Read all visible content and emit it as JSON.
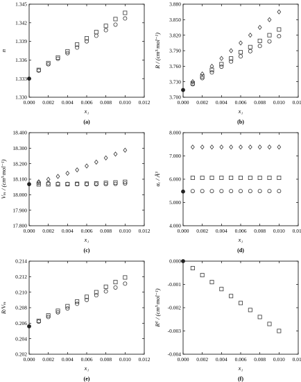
{
  "chart_data": [
    {
      "type": "scatter",
      "panel_label": "(a)",
      "xlabel": "x₁",
      "ylabel": "n",
      "xlim": [
        0.0,
        0.012
      ],
      "ylim": [
        1.33,
        1.345
      ],
      "xticks": [
        "0.000",
        "0.002",
        "0.004",
        "0.006",
        "0.008",
        "0.010",
        "0.012"
      ],
      "yticks": [
        "1.330",
        "1.333",
        "1.336",
        "1.339",
        "1.342",
        "1.345"
      ],
      "series": [
        {
          "marker": "filled-circle",
          "x": [
            0.0
          ],
          "y": [
            1.333
          ]
        },
        {
          "marker": "square",
          "x": [
            0.001,
            0.002,
            0.003,
            0.004,
            0.005,
            0.006,
            0.007,
            0.008,
            0.009,
            0.01
          ],
          "y": [
            1.3344,
            1.3355,
            1.3364,
            1.3374,
            1.3385,
            1.3395,
            1.3405,
            1.3415,
            1.3426,
            1.3436
          ]
        },
        {
          "marker": "circle",
          "x": [
            0.001,
            0.002,
            0.003,
            0.004,
            0.005,
            0.006,
            0.007,
            0.008,
            0.009,
            0.01
          ],
          "y": [
            1.3343,
            1.3353,
            1.3362,
            1.3371,
            1.338,
            1.339,
            1.3399,
            1.3408,
            1.3417,
            1.3427
          ]
        }
      ]
    },
    {
      "type": "scatter",
      "panel_label": "(b)",
      "xlabel": "x₁",
      "ylabel": "R / (cm³·mol⁻¹)",
      "xlim": [
        0.0,
        0.012
      ],
      "ylim": [
        3.7,
        3.88
      ],
      "xticks": [
        "0.000",
        "0.002",
        "0.004",
        "0.006",
        "0.008",
        "0.010",
        "0.012"
      ],
      "yticks": [
        "3.700",
        "3.730",
        "3.760",
        "3.790",
        "3.820",
        "3.850",
        "3.880"
      ],
      "series": [
        {
          "marker": "filled-circle",
          "x": [
            0.0
          ],
          "y": [
            3.714
          ]
        },
        {
          "marker": "diamond",
          "x": [
            0.001,
            0.002,
            0.003,
            0.004,
            0.005,
            0.006,
            0.007,
            0.008,
            0.009,
            0.01
          ],
          "y": [
            3.73,
            3.745,
            3.76,
            3.775,
            3.79,
            3.805,
            3.82,
            3.835,
            3.85,
            3.865
          ]
        },
        {
          "marker": "square",
          "x": [
            0.001,
            0.002,
            0.003,
            0.004,
            0.005,
            0.006,
            0.007,
            0.008,
            0.009,
            0.01
          ],
          "y": [
            3.727,
            3.74,
            3.753,
            3.764,
            3.775,
            3.787,
            3.797,
            3.809,
            3.82,
            3.831
          ]
        },
        {
          "marker": "circle",
          "x": [
            0.001,
            0.002,
            0.003,
            0.004,
            0.005,
            0.006,
            0.007,
            0.008,
            0.009,
            0.01
          ],
          "y": [
            3.725,
            3.737,
            3.748,
            3.759,
            3.769,
            3.779,
            3.789,
            3.799,
            3.808,
            3.818
          ]
        }
      ]
    },
    {
      "type": "scatter",
      "panel_label": "(c)",
      "xlabel": "x₁",
      "ylabel": "Vₘ / (cm³·mol⁻¹)",
      "xlim": [
        0.0,
        0.012
      ],
      "ylim": [
        17.8,
        18.4
      ],
      "xticks": [
        "0.000",
        "0.002",
        "0.004",
        "0.006",
        "0.008",
        "0.010",
        "0.012"
      ],
      "yticks": [
        "17.800",
        "17.900",
        "18.000",
        "18.100",
        "18.200",
        "18.300",
        "18.400"
      ],
      "series": [
        {
          "marker": "filled-circle",
          "x": [
            0.0
          ],
          "y": [
            18.068
          ]
        },
        {
          "marker": "diamond",
          "x": [
            0.001,
            0.002,
            0.003,
            0.004,
            0.005,
            0.006,
            0.007,
            0.008,
            0.009,
            0.01
          ],
          "y": [
            18.083,
            18.099,
            18.118,
            18.138,
            18.16,
            18.185,
            18.21,
            18.237,
            18.262,
            18.287
          ]
        },
        {
          "marker": "circle",
          "x": [
            0.001,
            0.002,
            0.003,
            0.004,
            0.005,
            0.006,
            0.007,
            0.008,
            0.009,
            0.01
          ],
          "y": [
            18.076,
            18.074,
            18.071,
            18.07,
            18.068,
            18.067,
            18.067,
            18.068,
            18.07,
            18.072
          ]
        },
        {
          "marker": "square",
          "x": [
            0.001,
            0.002,
            0.003,
            0.004,
            0.005,
            0.006,
            0.007,
            0.008,
            0.009,
            0.01
          ],
          "y": [
            18.067,
            18.067,
            18.067,
            18.068,
            18.07,
            18.071,
            18.073,
            18.076,
            18.079,
            18.083
          ]
        }
      ]
    },
    {
      "type": "scatter",
      "panel_label": "(d)",
      "xlabel": "x₁",
      "ylabel": "αₑ / Å³",
      "xlim": [
        0.0,
        0.012
      ],
      "ylim": [
        4.0,
        8.0
      ],
      "xticks": [
        "0.000",
        "0.002",
        "0.004",
        "0.006",
        "0.008",
        "0.010",
        "0.012"
      ],
      "yticks": [
        "4.000",
        "5.000",
        "6.000",
        "7.000",
        "8.000"
      ],
      "series": [
        {
          "marker": "filled-circle",
          "x": [
            0.0
          ],
          "y": [
            5.47
          ]
        },
        {
          "marker": "diamond",
          "x": [
            0.001,
            0.002,
            0.003,
            0.004,
            0.005,
            0.006,
            0.007,
            0.008,
            0.009,
            0.01
          ],
          "y": [
            7.38,
            7.38,
            7.38,
            7.38,
            7.38,
            7.38,
            7.38,
            7.38,
            7.38,
            7.38
          ]
        },
        {
          "marker": "square",
          "x": [
            0.001,
            0.002,
            0.003,
            0.004,
            0.005,
            0.006,
            0.007,
            0.008,
            0.009,
            0.01
          ],
          "y": [
            6.06,
            6.06,
            6.06,
            6.06,
            6.06,
            6.06,
            6.06,
            6.06,
            6.06,
            6.06
          ]
        },
        {
          "marker": "circle",
          "x": [
            0.001,
            0.002,
            0.003,
            0.004,
            0.005,
            0.006,
            0.007,
            0.008,
            0.009,
            0.01
          ],
          "y": [
            5.49,
            5.49,
            5.49,
            5.49,
            5.49,
            5.49,
            5.49,
            5.49,
            5.49,
            5.49
          ]
        }
      ]
    },
    {
      "type": "scatter",
      "panel_label": "(e)",
      "xlabel": "x₁",
      "ylabel": "R/Vₘ",
      "xlim": [
        0.0,
        0.012
      ],
      "ylim": [
        0.202,
        0.214
      ],
      "xticks": [
        "0.000",
        "0.002",
        "0.004",
        "0.006",
        "0.008",
        "0.010",
        "0.012"
      ],
      "yticks": [
        "0.202",
        "0.204",
        "0.206",
        "0.208",
        "0.210",
        "0.212",
        "0.214"
      ],
      "series": [
        {
          "marker": "filled-circle",
          "x": [
            0.0
          ],
          "y": [
            0.2056
          ]
        },
        {
          "marker": "square",
          "x": [
            0.001,
            0.002,
            0.003,
            0.004,
            0.005,
            0.006,
            0.007,
            0.008,
            0.009,
            0.01
          ],
          "y": [
            0.2063,
            0.207,
            0.2076,
            0.2082,
            0.2088,
            0.2094,
            0.21,
            0.2107,
            0.2113,
            0.2119
          ]
        },
        {
          "marker": "circle",
          "x": [
            0.001,
            0.002,
            0.003,
            0.004,
            0.005,
            0.006,
            0.007,
            0.008,
            0.009,
            0.01
          ],
          "y": [
            0.2062,
            0.2068,
            0.2074,
            0.2079,
            0.2085,
            0.209,
            0.2096,
            0.2101,
            0.2106,
            0.2111
          ]
        }
      ]
    },
    {
      "type": "scatter",
      "panel_label": "(f)",
      "xlabel": "x₁",
      "ylabel": "Rᴱ / (cm³·mol⁻¹)",
      "xlim": [
        0.0,
        0.012
      ],
      "ylim": [
        -0.004,
        0.0
      ],
      "xticks": [
        "0.000",
        "0.002",
        "0.004",
        "0.006",
        "0.008",
        "0.010",
        "0.012"
      ],
      "yticks": [
        "0.000",
        "-0.001",
        "-0.002",
        "-0.003",
        "-0.004"
      ],
      "series": [
        {
          "marker": "filled-circle",
          "x": [
            0.0
          ],
          "y": [
            0.0
          ]
        },
        {
          "marker": "square",
          "x": [
            0.001,
            0.002,
            0.003,
            0.004,
            0.005,
            0.006,
            0.007,
            0.008,
            0.009,
            0.01
          ],
          "y": [
            -0.0003,
            -0.0006,
            -0.0009,
            -0.0012,
            -0.0015,
            -0.0018,
            -0.0021,
            -0.0024,
            -0.0027,
            -0.003
          ]
        }
      ]
    }
  ]
}
